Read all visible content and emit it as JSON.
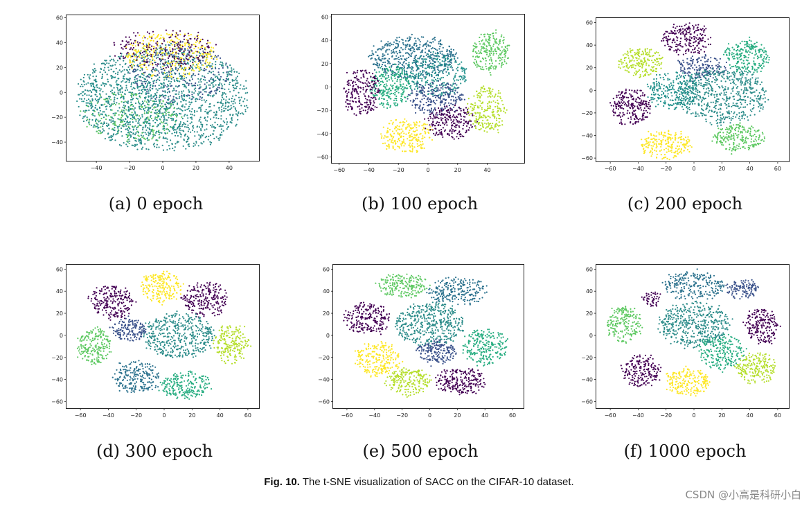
{
  "figure": {
    "label": "Fig. 10.",
    "caption": "The t-SNE visualization of SACC on the CIFAR-10 dataset."
  },
  "watermark": "CSDN @小高是科研小白",
  "chart_data": [
    {
      "type": "scatter",
      "caption": "(a) 0 epoch",
      "xticks": [
        -40,
        -20,
        0,
        20,
        40
      ],
      "yticks": [
        -40,
        -20,
        0,
        20,
        40,
        60
      ],
      "xlim": [
        -58,
        58
      ],
      "ylim": [
        -55,
        62
      ],
      "clusters": [
        {
          "color": "#2c8c8a",
          "cx": 0,
          "cy": -5,
          "rx": 52,
          "ry": 42,
          "n": 1400
        },
        {
          "color": "#fde725",
          "cx": 5,
          "cy": 30,
          "rx": 28,
          "ry": 18,
          "n": 350
        },
        {
          "color": "#3b528b",
          "cx": 10,
          "cy": 15,
          "rx": 30,
          "ry": 25,
          "n": 250
        },
        {
          "color": "#440154",
          "cx": 0,
          "cy": 35,
          "rx": 30,
          "ry": 15,
          "n": 200
        },
        {
          "color": "#5ec962",
          "cx": -20,
          "cy": -20,
          "rx": 30,
          "ry": 20,
          "n": 200
        },
        {
          "color": "#21918c",
          "cx": -15,
          "cy": -10,
          "rx": 35,
          "ry": 30,
          "n": 300
        }
      ]
    },
    {
      "type": "scatter",
      "caption": "(b) 100 epoch",
      "xticks": [
        -60,
        -40,
        -20,
        0,
        20,
        40
      ],
      "yticks": [
        -60,
        -40,
        -20,
        0,
        20,
        40,
        60
      ],
      "xlim": [
        -65,
        65
      ],
      "ylim": [
        -65,
        62
      ],
      "clusters": [
        {
          "color": "#2c728e",
          "cx": -10,
          "cy": 25,
          "rx": 30,
          "ry": 18,
          "n": 500
        },
        {
          "color": "#21918c",
          "cx": 5,
          "cy": 10,
          "rx": 22,
          "ry": 18,
          "n": 300
        },
        {
          "color": "#27ad81",
          "cx": -25,
          "cy": 0,
          "rx": 14,
          "ry": 18,
          "n": 250
        },
        {
          "color": "#3b528b",
          "cx": 5,
          "cy": -10,
          "rx": 18,
          "ry": 14,
          "n": 250
        },
        {
          "color": "#440154",
          "cx": -45,
          "cy": -5,
          "rx": 12,
          "ry": 20,
          "n": 220
        },
        {
          "color": "#440154",
          "cx": 15,
          "cy": -30,
          "rx": 16,
          "ry": 14,
          "n": 220
        },
        {
          "color": "#fde725",
          "cx": -15,
          "cy": -42,
          "rx": 18,
          "ry": 14,
          "n": 230
        },
        {
          "color": "#b5de2b",
          "cx": 40,
          "cy": -20,
          "rx": 12,
          "ry": 20,
          "n": 220
        },
        {
          "color": "#5ec962",
          "cx": 42,
          "cy": 30,
          "rx": 12,
          "ry": 18,
          "n": 220
        }
      ]
    },
    {
      "type": "scatter",
      "caption": "(c) 200 epoch",
      "xticks": [
        -60,
        -40,
        -20,
        0,
        20,
        40,
        60
      ],
      "yticks": [
        -60,
        -40,
        -20,
        0,
        20,
        40,
        60
      ],
      "xlim": [
        -70,
        68
      ],
      "ylim": [
        -63,
        64
      ],
      "clusters": [
        {
          "color": "#440154",
          "cx": -5,
          "cy": 45,
          "rx": 18,
          "ry": 14,
          "n": 220
        },
        {
          "color": "#b5de2b",
          "cx": -38,
          "cy": 25,
          "rx": 16,
          "ry": 12,
          "n": 200
        },
        {
          "color": "#3b528b",
          "cx": 5,
          "cy": 20,
          "rx": 18,
          "ry": 10,
          "n": 180
        },
        {
          "color": "#2c8c8a",
          "cx": 20,
          "cy": -5,
          "rx": 32,
          "ry": 25,
          "n": 600
        },
        {
          "color": "#27ad81",
          "cx": 38,
          "cy": 30,
          "rx": 16,
          "ry": 14,
          "n": 230
        },
        {
          "color": "#440154",
          "cx": -45,
          "cy": -15,
          "rx": 14,
          "ry": 16,
          "n": 220
        },
        {
          "color": "#fde725",
          "cx": -20,
          "cy": -48,
          "rx": 18,
          "ry": 12,
          "n": 220
        },
        {
          "color": "#5ec962",
          "cx": 32,
          "cy": -42,
          "rx": 18,
          "ry": 12,
          "n": 220
        },
        {
          "color": "#21918c",
          "cx": -15,
          "cy": 0,
          "rx": 18,
          "ry": 16,
          "n": 250
        }
      ]
    },
    {
      "type": "scatter",
      "caption": "(d) 300 epoch",
      "xticks": [
        -60,
        -40,
        -20,
        0,
        20,
        40,
        60
      ],
      "yticks": [
        -60,
        -40,
        -20,
        0,
        20,
        40,
        60
      ],
      "xlim": [
        -70,
        68
      ],
      "ylim": [
        -66,
        64
      ],
      "clusters": [
        {
          "color": "#440154",
          "cx": -38,
          "cy": 30,
          "rx": 16,
          "ry": 15,
          "n": 220
        },
        {
          "color": "#fde725",
          "cx": -2,
          "cy": 44,
          "rx": 14,
          "ry": 14,
          "n": 200
        },
        {
          "color": "#440154",
          "cx": 30,
          "cy": 32,
          "rx": 16,
          "ry": 16,
          "n": 220
        },
        {
          "color": "#2c8c8a",
          "cx": 10,
          "cy": 0,
          "rx": 26,
          "ry": 20,
          "n": 450
        },
        {
          "color": "#3b528b",
          "cx": -25,
          "cy": 5,
          "rx": 12,
          "ry": 10,
          "n": 150
        },
        {
          "color": "#5ec962",
          "cx": -50,
          "cy": -10,
          "rx": 12,
          "ry": 16,
          "n": 200
        },
        {
          "color": "#b5de2b",
          "cx": 48,
          "cy": -8,
          "rx": 12,
          "ry": 18,
          "n": 200
        },
        {
          "color": "#2c728e",
          "cx": -20,
          "cy": -38,
          "rx": 16,
          "ry": 14,
          "n": 220
        },
        {
          "color": "#27ad81",
          "cx": 15,
          "cy": -45,
          "rx": 18,
          "ry": 12,
          "n": 220
        }
      ]
    },
    {
      "type": "scatter",
      "caption": "(e) 500 epoch",
      "xticks": [
        -60,
        -40,
        -20,
        0,
        20,
        40,
        60
      ],
      "yticks": [
        -60,
        -40,
        -20,
        0,
        20,
        40,
        60
      ],
      "xlim": [
        -70,
        68
      ],
      "ylim": [
        -66,
        64
      ],
      "clusters": [
        {
          "color": "#5ec962",
          "cx": -20,
          "cy": 45,
          "rx": 18,
          "ry": 10,
          "n": 200
        },
        {
          "color": "#2c728e",
          "cx": 20,
          "cy": 40,
          "rx": 22,
          "ry": 12,
          "n": 230
        },
        {
          "color": "#440154",
          "cx": -45,
          "cy": 15,
          "rx": 16,
          "ry": 14,
          "n": 220
        },
        {
          "color": "#2c8c8a",
          "cx": 0,
          "cy": 10,
          "rx": 25,
          "ry": 20,
          "n": 450
        },
        {
          "color": "#27ad81",
          "cx": 40,
          "cy": -10,
          "rx": 16,
          "ry": 16,
          "n": 230
        },
        {
          "color": "#fde725",
          "cx": -38,
          "cy": -22,
          "rx": 16,
          "ry": 15,
          "n": 230
        },
        {
          "color": "#b5de2b",
          "cx": -15,
          "cy": -42,
          "rx": 16,
          "ry": 12,
          "n": 200
        },
        {
          "color": "#440154",
          "cx": 22,
          "cy": -42,
          "rx": 18,
          "ry": 12,
          "n": 220
        },
        {
          "color": "#3b528b",
          "cx": 5,
          "cy": -15,
          "rx": 14,
          "ry": 10,
          "n": 180
        }
      ]
    },
    {
      "type": "scatter",
      "caption": "(f) 1000 epoch",
      "xticks": [
        -60,
        -40,
        -20,
        0,
        20,
        40,
        60
      ],
      "yticks": [
        -60,
        -40,
        -20,
        0,
        20,
        40,
        60
      ],
      "xlim": [
        -70,
        68
      ],
      "ylim": [
        -66,
        64
      ],
      "clusters": [
        {
          "color": "#2c728e",
          "cx": 0,
          "cy": 45,
          "rx": 22,
          "ry": 12,
          "n": 230
        },
        {
          "color": "#3b528b",
          "cx": 35,
          "cy": 42,
          "rx": 12,
          "ry": 8,
          "n": 120
        },
        {
          "color": "#5ec962",
          "cx": -50,
          "cy": 10,
          "rx": 12,
          "ry": 16,
          "n": 200
        },
        {
          "color": "#2c8c8a",
          "cx": 0,
          "cy": 10,
          "rx": 25,
          "ry": 20,
          "n": 450
        },
        {
          "color": "#440154",
          "cx": 48,
          "cy": 8,
          "rx": 12,
          "ry": 16,
          "n": 200
        },
        {
          "color": "#27ad81",
          "cx": 20,
          "cy": -15,
          "rx": 16,
          "ry": 16,
          "n": 220
        },
        {
          "color": "#b5de2b",
          "cx": 45,
          "cy": -30,
          "rx": 14,
          "ry": 14,
          "n": 200
        },
        {
          "color": "#440154",
          "cx": -38,
          "cy": -32,
          "rx": 14,
          "ry": 14,
          "n": 200
        },
        {
          "color": "#fde725",
          "cx": -5,
          "cy": -42,
          "rx": 16,
          "ry": 12,
          "n": 200
        },
        {
          "color": "#440154",
          "cx": -30,
          "cy": 33,
          "rx": 6,
          "ry": 6,
          "n": 50
        }
      ]
    }
  ]
}
